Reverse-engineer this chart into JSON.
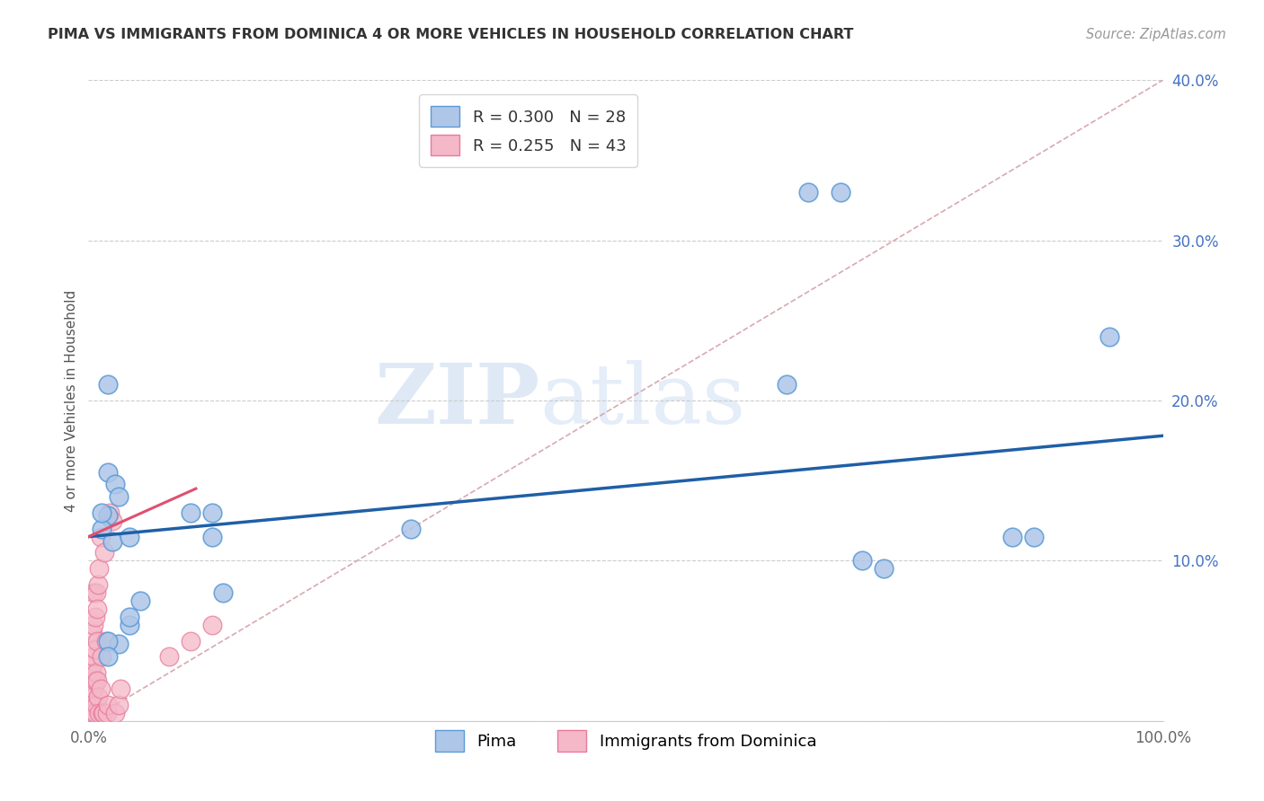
{
  "title": "PIMA VS IMMIGRANTS FROM DOMINICA 4 OR MORE VEHICLES IN HOUSEHOLD CORRELATION CHART",
  "source": "Source: ZipAtlas.com",
  "ylabel": "4 or more Vehicles in Household",
  "xlim": [
    0,
    1.0
  ],
  "ylim": [
    0,
    0.4
  ],
  "legend_pima_R": "0.300",
  "legend_pima_N": "28",
  "legend_dom_R": "0.255",
  "legend_dom_N": "43",
  "pima_color": "#aec6e8",
  "pima_edge_color": "#5b9bd5",
  "dom_color": "#f4b8c8",
  "dom_edge_color": "#e87a9a",
  "pima_line_color": "#1f5fa6",
  "dom_line_color": "#e05070",
  "diagonal_color": "#d4a0a8",
  "watermark_zip": "ZIP",
  "watermark_atlas": "atlas",
  "background_color": "#ffffff",
  "pima_scatter_x": [
    0.018,
    0.025,
    0.028,
    0.018,
    0.012,
    0.022,
    0.038,
    0.048,
    0.038,
    0.028,
    0.012,
    0.018,
    0.095,
    0.115,
    0.115,
    0.125,
    0.3,
    0.65,
    0.67,
    0.7,
    0.72,
    0.74,
    0.86,
    0.88,
    0.95,
    0.018,
    0.018,
    0.038
  ],
  "pima_scatter_y": [
    0.155,
    0.148,
    0.14,
    0.128,
    0.12,
    0.112,
    0.115,
    0.075,
    0.06,
    0.048,
    0.13,
    0.21,
    0.13,
    0.13,
    0.115,
    0.08,
    0.12,
    0.21,
    0.33,
    0.33,
    0.1,
    0.095,
    0.115,
    0.115,
    0.24,
    0.05,
    0.04,
    0.065
  ],
  "dom_scatter_x": [
    0.002,
    0.002,
    0.003,
    0.003,
    0.004,
    0.004,
    0.004,
    0.005,
    0.005,
    0.005,
    0.005,
    0.005,
    0.006,
    0.006,
    0.006,
    0.006,
    0.007,
    0.007,
    0.007,
    0.008,
    0.008,
    0.008,
    0.009,
    0.009,
    0.01,
    0.01,
    0.011,
    0.011,
    0.012,
    0.013,
    0.014,
    0.015,
    0.016,
    0.017,
    0.018,
    0.02,
    0.022,
    0.025,
    0.028,
    0.03,
    0.075,
    0.095,
    0.115
  ],
  "dom_scatter_y": [
    0.005,
    0.025,
    0.01,
    0.03,
    0.015,
    0.035,
    0.055,
    0.005,
    0.02,
    0.04,
    0.06,
    0.08,
    0.005,
    0.025,
    0.045,
    0.065,
    0.01,
    0.03,
    0.08,
    0.025,
    0.05,
    0.07,
    0.015,
    0.085,
    0.005,
    0.095,
    0.02,
    0.115,
    0.04,
    0.005,
    0.005,
    0.105,
    0.05,
    0.005,
    0.01,
    0.13,
    0.125,
    0.005,
    0.01,
    0.02,
    0.04,
    0.05,
    0.06
  ],
  "pima_line_x0": 0.0,
  "pima_line_y0": 0.115,
  "pima_line_x1": 1.0,
  "pima_line_y1": 0.178,
  "dom_line_x0": 0.0,
  "dom_line_y0": 0.115,
  "dom_line_x1": 0.1,
  "dom_line_y1": 0.145
}
